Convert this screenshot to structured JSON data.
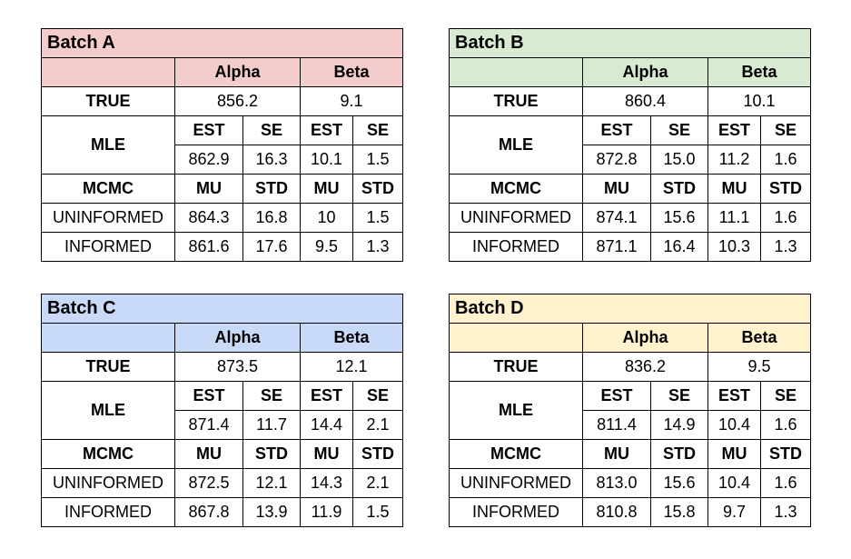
{
  "colors": {
    "batch_a": "#f4cccc",
    "batch_b": "#d9ead3",
    "batch_c": "#c9daf8",
    "batch_d": "#fff2cc"
  },
  "labels": {
    "alpha": "Alpha",
    "beta": "Beta",
    "true": "TRUE",
    "mle": "MLE",
    "mcmc": "MCMC",
    "est": "EST",
    "se": "SE",
    "mu": "MU",
    "std": "STD",
    "uninformed": "UNINFORMED",
    "informed": "INFORMED"
  },
  "batches": [
    {
      "title": "Batch A",
      "true_alpha": "856.2",
      "true_beta": "9.1",
      "mle": [
        "862.9",
        "16.3",
        "10.1",
        "1.5"
      ],
      "uninformed": [
        "864.3",
        "16.8",
        "10",
        "1.5"
      ],
      "informed": [
        "861.6",
        "17.6",
        "9.5",
        "1.3"
      ]
    },
    {
      "title": "Batch B",
      "true_alpha": "860.4",
      "true_beta": "10.1",
      "mle": [
        "872.8",
        "15.0",
        "11.2",
        "1.6"
      ],
      "uninformed": [
        "874.1",
        "15.6",
        "11.1",
        "1.6"
      ],
      "informed": [
        "871.1",
        "16.4",
        "10.3",
        "1.3"
      ]
    },
    {
      "title": "Batch C",
      "true_alpha": "873.5",
      "true_beta": "12.1",
      "mle": [
        "871.4",
        "11.7",
        "14.4",
        "2.1"
      ],
      "uninformed": [
        "872.5",
        "12.1",
        "14.3",
        "2.1"
      ],
      "informed": [
        "867.8",
        "13.9",
        "11.9",
        "1.5"
      ]
    },
    {
      "title": "Batch D",
      "true_alpha": "836.2",
      "true_beta": "9.5",
      "mle": [
        "811.4",
        "14.9",
        "10.4",
        "1.6"
      ],
      "uninformed": [
        "813.0",
        "15.6",
        "10.4",
        "1.6"
      ],
      "informed": [
        "810.8",
        "15.8",
        "9.7",
        "1.3"
      ]
    }
  ]
}
